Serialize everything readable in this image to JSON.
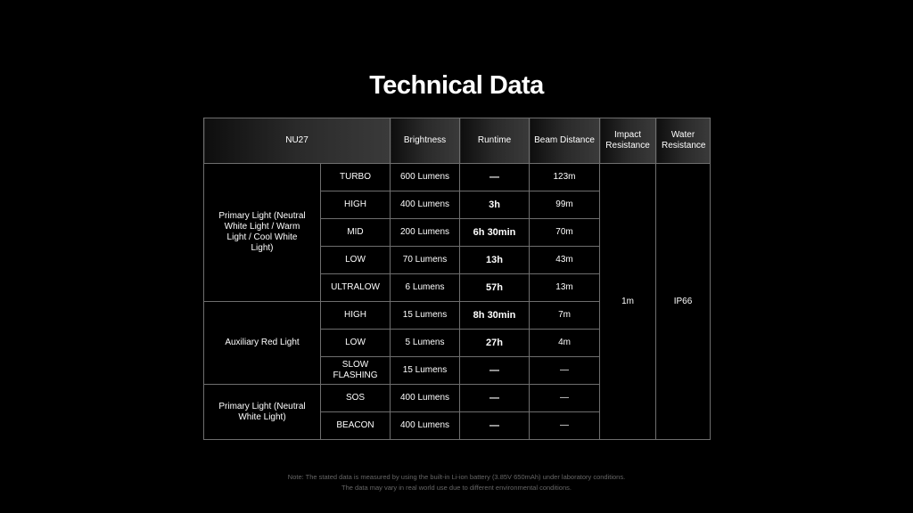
{
  "title": "Technical Data",
  "header": {
    "model": "NU27",
    "brightness": "Brightness",
    "runtime": "Runtime",
    "beam": "Beam Distance",
    "impact": "Impact Resistance",
    "water": "Water Resistance"
  },
  "groups": [
    {
      "label": "Primary Light (Neutral White Light / Warm Light / Cool White Light)",
      "rows": [
        {
          "mode": "TURBO",
          "brightness": "600 Lumens",
          "runtime": "—",
          "beam": "123m"
        },
        {
          "mode": "HIGH",
          "brightness": "400 Lumens",
          "runtime": "3h",
          "beam": "99m"
        },
        {
          "mode": "MID",
          "brightness": "200 Lumens",
          "runtime": "6h 30min",
          "beam": "70m"
        },
        {
          "mode": "LOW",
          "brightness": "70 Lumens",
          "runtime": "13h",
          "beam": "43m"
        },
        {
          "mode": "ULTRALOW",
          "brightness": "6 Lumens",
          "runtime": "57h",
          "beam": "13m"
        }
      ]
    },
    {
      "label": "Auxiliary Red Light",
      "rows": [
        {
          "mode": "HIGH",
          "brightness": "15 Lumens",
          "runtime": "8h 30min",
          "beam": "7m"
        },
        {
          "mode": "LOW",
          "brightness": "5 Lumens",
          "runtime": "27h",
          "beam": "4m"
        },
        {
          "mode": "SLOW FLASHING",
          "brightness": "15 Lumens",
          "runtime": "—",
          "beam": "—"
        }
      ]
    },
    {
      "label": "Primary Light (Neutral White Light)",
      "rows": [
        {
          "mode": "SOS",
          "brightness": "400 Lumens",
          "runtime": "—",
          "beam": "—"
        },
        {
          "mode": "BEACON",
          "brightness": "400 Lumens",
          "runtime": "—",
          "beam": "—"
        }
      ]
    }
  ],
  "impact": "1m",
  "water": "IP66",
  "note": [
    "Note: The stated data is measured by using the built-in Li-ion battery (3.85V 650mAh) under laboratory conditions.",
    "The data may vary in real world use due to different environmental conditions."
  ]
}
